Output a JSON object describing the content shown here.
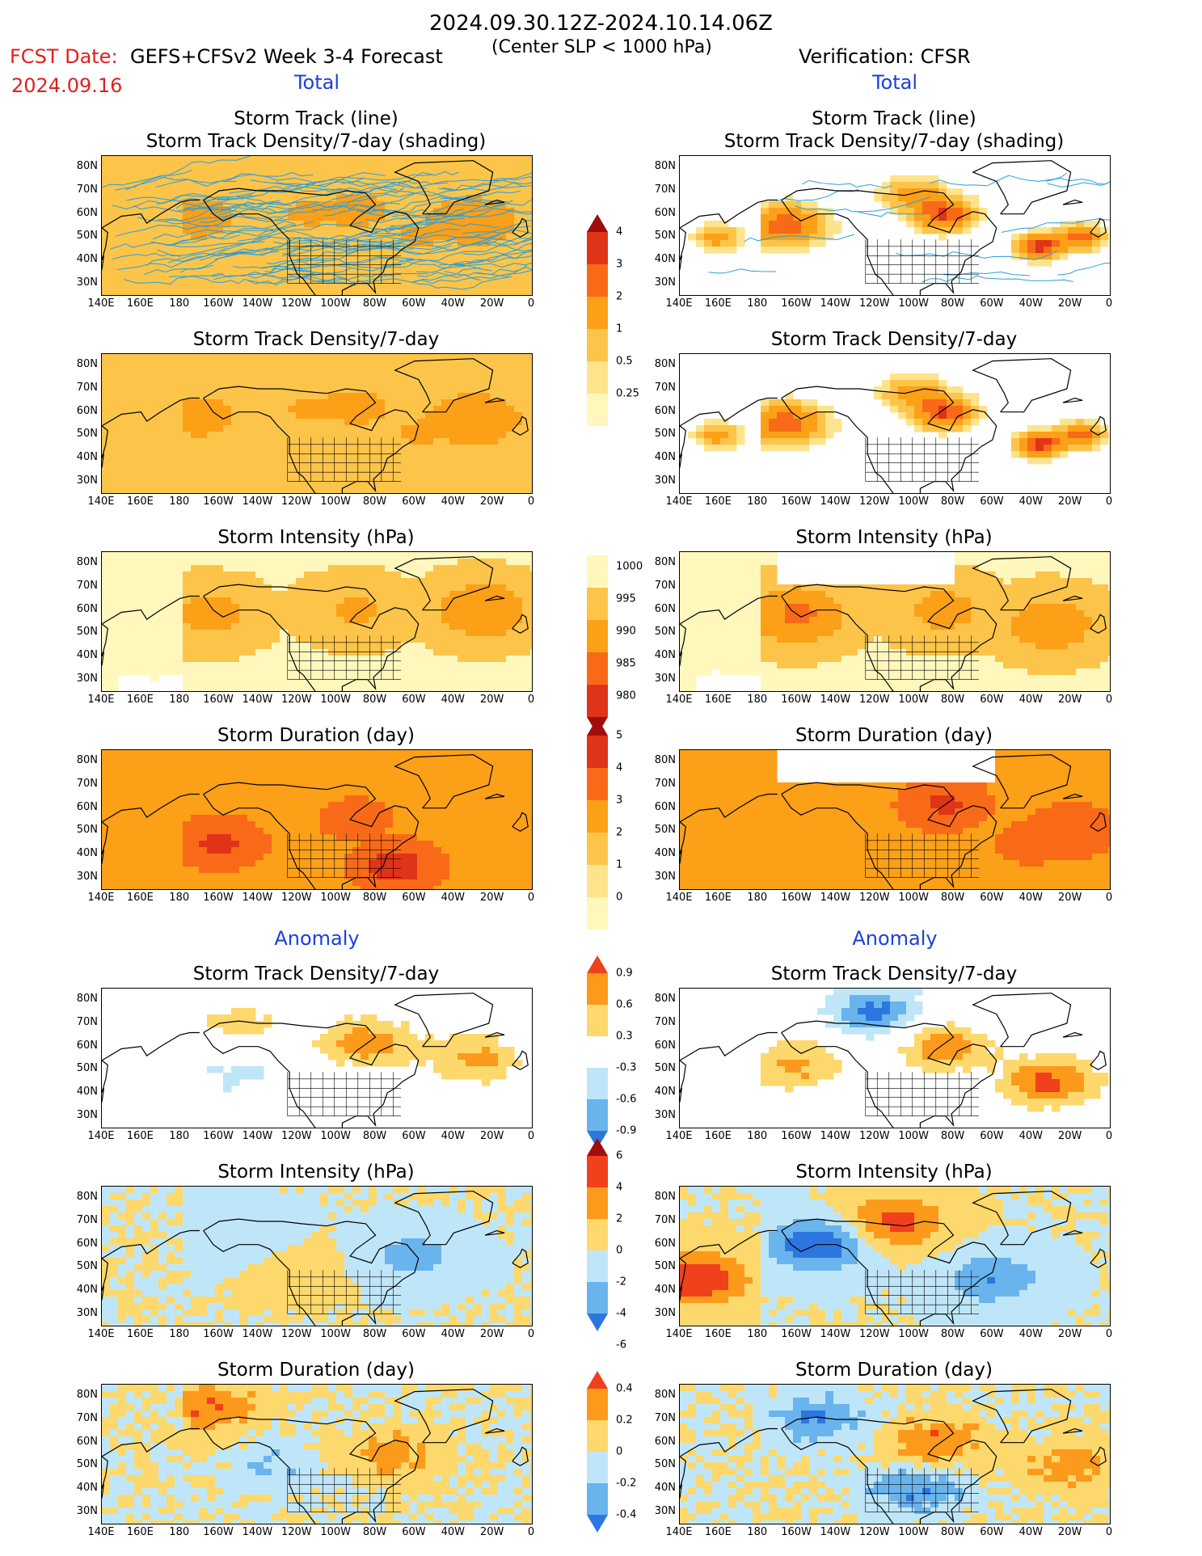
{
  "header": {
    "date_range": "2024.09.30.12Z-2024.10.14.06Z",
    "fcst_date_label": "FCST Date:",
    "fcst_date": "2024.09.16",
    "fcst_title": "GEFS+CFSv2 Week 3-4 Forecast",
    "center_slp": "(Center SLP < 1000 hPa)",
    "verif_title": "Verification: CFSR"
  },
  "sections": {
    "total": "Total",
    "anomaly": "Anomaly"
  },
  "titles": {
    "track_line": "Storm Track (line)",
    "track_shading": "Storm Track Density/7-day (shading)",
    "density": "Storm Track Density/7-day",
    "intensity": "Storm Intensity (hPa)",
    "duration": "Storm Duration (day)"
  },
  "axes": {
    "lat_ticks": [
      "80N",
      "70N",
      "60N",
      "50N",
      "40N",
      "30N"
    ],
    "lon_ticks": [
      "140E",
      "160E",
      "180",
      "160W",
      "140W",
      "120W",
      "100W",
      "80W",
      "60W",
      "40W",
      "20W",
      "0"
    ]
  },
  "colors": {
    "land_line": "#000000",
    "track_line": "#2a9fd8",
    "title_blue": "#1a3fe0",
    "date_red": "#e02020"
  },
  "chart_data": [
    {
      "id": "track-fcst",
      "type": "heatmap",
      "title": "Storm Track (line)",
      "subtitle": "Storm Track Density/7-day (shading)",
      "scale": "density",
      "column": "forecast",
      "tracks": true,
      "hotspots": [
        [
          -170,
          58,
          6,
          1.0
        ],
        [
          -115,
          60,
          4,
          0.7
        ],
        [
          -90,
          62,
          5,
          1.0
        ],
        [
          -30,
          57,
          8,
          0.9
        ],
        [
          -60,
          50,
          3,
          0.6
        ]
      ]
    },
    {
      "id": "track-verif",
      "type": "heatmap",
      "title": "Storm Track (line)",
      "subtitle": "Storm Track Density/7-day (shading)",
      "scale": "density",
      "column": "verification",
      "tracks": true,
      "hotspots": [
        [
          -165,
          55,
          5,
          2.6
        ],
        [
          -85,
          60,
          4,
          3.2
        ],
        [
          -35,
          46,
          3,
          3.6
        ],
        [
          -15,
          50,
          3,
          2.6
        ],
        [
          -100,
          68,
          4,
          1.6
        ],
        [
          160,
          50,
          3,
          1.4
        ]
      ]
    },
    {
      "id": "density-fcst",
      "type": "heatmap",
      "title": "Storm Track Density/7-day",
      "scale": "density",
      "column": "forecast",
      "hotspots": [
        [
          -170,
          58,
          6,
          1.0
        ],
        [
          -115,
          62,
          4,
          0.6
        ],
        [
          -90,
          62,
          5,
          1.0
        ],
        [
          -30,
          57,
          8,
          1.0
        ],
        [
          -60,
          50,
          3,
          0.6
        ]
      ]
    },
    {
      "id": "density-verif",
      "type": "heatmap",
      "title": "Storm Track Density/7-day",
      "scale": "density",
      "column": "verification",
      "hotspots": [
        [
          -165,
          55,
          5,
          2.6
        ],
        [
          -85,
          60,
          4,
          3.2
        ],
        [
          -35,
          46,
          3,
          3.6
        ],
        [
          -15,
          50,
          3,
          2.6
        ],
        [
          -100,
          68,
          4,
          1.6
        ],
        [
          160,
          50,
          3,
          1.4
        ]
      ]
    },
    {
      "id": "intensity-fcst",
      "type": "heatmap",
      "title": "Storm Intensity (hPa)",
      "scale": "intensity",
      "column": "forecast",
      "hotspots": [
        [
          -165,
          58,
          0,
          988
        ],
        [
          -90,
          60,
          0,
          989
        ],
        [
          -25,
          60,
          0,
          985
        ]
      ]
    },
    {
      "id": "intensity-verif",
      "type": "heatmap",
      "title": "Storm Intensity (hPa)",
      "scale": "intensity",
      "column": "verification",
      "hotspots": [
        [
          -160,
          58,
          0,
          984
        ],
        [
          -85,
          60,
          0,
          988
        ],
        [
          -30,
          54,
          0,
          986
        ]
      ]
    },
    {
      "id": "duration-fcst",
      "type": "heatmap",
      "title": "Storm Duration (day)",
      "scale": "duration",
      "column": "forecast",
      "hotspots": [
        [
          -160,
          45,
          0,
          4.2
        ],
        [
          -70,
          35,
          0,
          4.5
        ],
        [
          -90,
          55,
          0,
          3.5
        ]
      ]
    },
    {
      "id": "duration-verif",
      "type": "heatmap",
      "title": "Storm Duration (day)",
      "scale": "duration",
      "column": "verification",
      "hotspots": [
        [
          -85,
          62,
          0,
          4.2
        ],
        [
          -20,
          50,
          0,
          4.0
        ],
        [
          -40,
          45,
          0,
          3.5
        ]
      ]
    },
    {
      "id": "anom-density-fcst",
      "type": "heatmap",
      "title": "Storm Track Density/7-day",
      "scale": "anom_density",
      "column": "forecast",
      "hotspots": [
        [
          -85,
          62,
          0,
          0.8
        ],
        [
          -30,
          55,
          0,
          0.7
        ],
        [
          -150,
          70,
          0,
          0.4
        ],
        [
          -150,
          48,
          0,
          -0.4
        ]
      ]
    },
    {
      "id": "anom-density-verif",
      "type": "heatmap",
      "title": "Storm Track Density/7-day",
      "scale": "anom_density",
      "column": "verification",
      "hotspots": [
        [
          -85,
          60,
          0,
          0.8
        ],
        [
          -30,
          45,
          0,
          1.0
        ],
        [
          -160,
          52,
          0,
          0.7
        ],
        [
          -120,
          75,
          0,
          -1.0
        ]
      ]
    },
    {
      "id": "anom-intensity-fcst",
      "type": "heatmap",
      "title": "Storm Intensity (hPa)",
      "scale": "anom_intensity",
      "column": "forecast",
      "hotspots": [
        [
          -150,
          65,
          0,
          -2
        ],
        [
          -60,
          55,
          0,
          -3
        ],
        [
          -120,
          50,
          0,
          1
        ]
      ]
    },
    {
      "id": "anom-intensity-verif",
      "type": "heatmap",
      "title": "Storm Intensity (hPa)",
      "scale": "anom_intensity",
      "column": "verification",
      "hotspots": [
        [
          150,
          45,
          0,
          6
        ],
        [
          -110,
          70,
          0,
          5
        ],
        [
          -150,
          60,
          0,
          -6
        ],
        [
          -60,
          45,
          0,
          -4
        ]
      ]
    },
    {
      "id": "anom-duration-fcst",
      "type": "heatmap",
      "title": "Storm Duration (day)",
      "scale": "anom_duration",
      "column": "forecast",
      "hotspots": [
        [
          -165,
          75,
          0,
          0.4
        ],
        [
          -70,
          55,
          0,
          0.3
        ],
        [
          -130,
          50,
          0,
          -0.2
        ]
      ]
    },
    {
      "id": "anom-duration-verif",
      "type": "heatmap",
      "title": "Storm Duration (day)",
      "scale": "anom_duration",
      "column": "verification",
      "hotspots": [
        [
          -90,
          60,
          0,
          0.4
        ],
        [
          -20,
          50,
          0,
          0.3
        ],
        [
          -150,
          70,
          0,
          -0.4
        ],
        [
          -100,
          40,
          0,
          -0.4
        ]
      ]
    }
  ],
  "colorbars": {
    "density": {
      "labels": [
        "4",
        "3",
        "2",
        "1",
        "0.5",
        "0.25"
      ],
      "colors": [
        "#a00d0d",
        "#e03418",
        "#f86a18",
        "#fca018",
        "#fdc44a",
        "#fde48c",
        "#fff7bc"
      ],
      "ends": "top"
    },
    "intensity": {
      "labels": [
        "1000",
        "995",
        "990",
        "985",
        "980"
      ],
      "colors": [
        "#fff7bc",
        "#fdc44a",
        "#fca018",
        "#f86a18",
        "#e03418",
        "#a00d0d"
      ],
      "ends": "bottom"
    },
    "duration": {
      "labels": [
        "5",
        "4",
        "3",
        "2",
        "1",
        "0"
      ],
      "colors": [
        "#a00d0d",
        "#e03418",
        "#f86a18",
        "#fca018",
        "#fdc44a",
        "#fde48c",
        "#fff7bc"
      ],
      "ends": "top"
    },
    "anom_density": {
      "labels": [
        "0.9",
        "0.6",
        "0.3",
        "-0.3",
        "-0.6",
        "-0.9"
      ],
      "colors": [
        "#f0401c",
        "#fc9a1c",
        "#fdd86c",
        "#ffffff",
        "#bfe6f8",
        "#6ab4ee",
        "#2d76e0"
      ],
      "ends": "both"
    },
    "anom_intensity": {
      "labels": [
        "6",
        "4",
        "2",
        "0",
        "-2",
        "-4",
        "-6"
      ],
      "colors": [
        "#a00d0d",
        "#f0401c",
        "#fc9a1c",
        "#fdd86c",
        "#bfe6f8",
        "#6ab4ee",
        "#2d76e0"
      ],
      "ends": "both"
    },
    "anom_duration": {
      "labels": [
        "0.4",
        "0.2",
        "0",
        "-0.2",
        "-0.4"
      ],
      "colors": [
        "#f0401c",
        "#fc9a1c",
        "#fdd86c",
        "#bfe6f8",
        "#6ab4ee",
        "#2d76e0"
      ],
      "ends": "both"
    }
  }
}
